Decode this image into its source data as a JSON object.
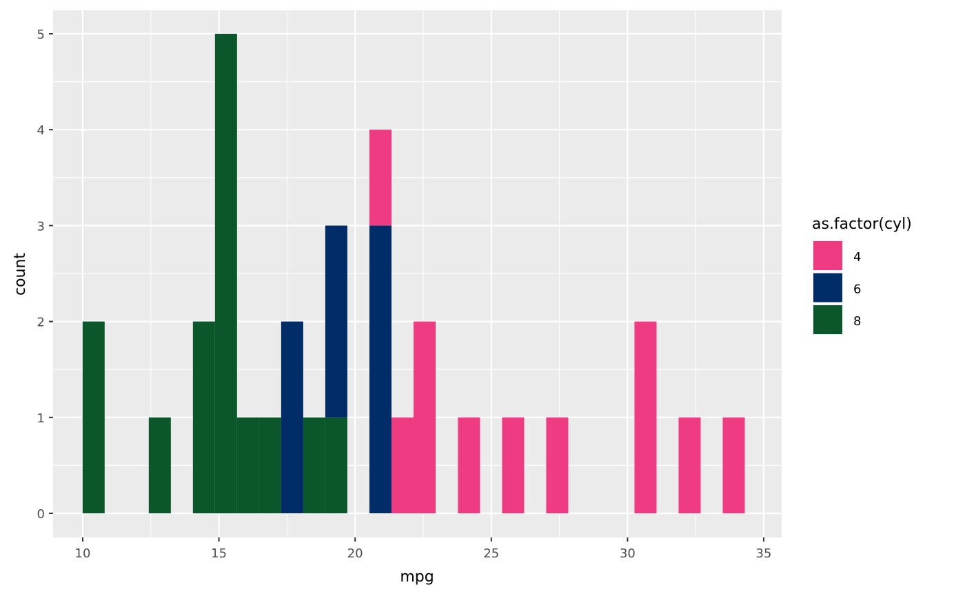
{
  "chart_data": {
    "type": "bar",
    "subtype": "stacked histogram",
    "title": "",
    "xlabel": "mpg",
    "ylabel": "count",
    "xlim": [
      9,
      35.7
    ],
    "ylim": [
      -0.25,
      5.25
    ],
    "xticks": [
      10,
      15,
      20,
      25,
      30,
      35
    ],
    "yticks": [
      0,
      1,
      2,
      3,
      4,
      5
    ],
    "binwidth": 0.8103,
    "grid": true,
    "legend": {
      "title": "as.factor(cyl)",
      "placement": "right",
      "entries": [
        "4",
        "6",
        "8"
      ]
    },
    "colors": {
      "4": "#EE3B82",
      "6": "#002D67",
      "8": "#0B572B"
    },
    "bins": [
      {
        "center": 10.4,
        "counts": {
          "4": 0,
          "6": 0,
          "8": 2
        }
      },
      {
        "center": 12.83,
        "counts": {
          "4": 0,
          "6": 0,
          "8": 1
        }
      },
      {
        "center": 14.45,
        "counts": {
          "4": 0,
          "6": 0,
          "8": 2
        }
      },
      {
        "center": 15.26,
        "counts": {
          "4": 0,
          "6": 0,
          "8": 5
        }
      },
      {
        "center": 16.07,
        "counts": {
          "4": 0,
          "6": 0,
          "8": 1
        }
      },
      {
        "center": 16.88,
        "counts": {
          "4": 0,
          "6": 0,
          "8": 1
        }
      },
      {
        "center": 17.69,
        "counts": {
          "4": 0,
          "6": 2,
          "8": 0
        }
      },
      {
        "center": 18.5,
        "counts": {
          "4": 0,
          "6": 0,
          "8": 1
        }
      },
      {
        "center": 19.31,
        "counts": {
          "4": 0,
          "6": 2,
          "8": 1
        }
      },
      {
        "center": 20.93,
        "counts": {
          "4": 1,
          "6": 3,
          "8": 0
        }
      },
      {
        "center": 21.74,
        "counts": {
          "4": 1,
          "6": 0,
          "8": 0
        }
      },
      {
        "center": 22.55,
        "counts": {
          "4": 2,
          "6": 0,
          "8": 0
        }
      },
      {
        "center": 24.18,
        "counts": {
          "4": 1,
          "6": 0,
          "8": 0
        }
      },
      {
        "center": 25.8,
        "counts": {
          "4": 1,
          "6": 0,
          "8": 0
        }
      },
      {
        "center": 27.42,
        "counts": {
          "4": 1,
          "6": 0,
          "8": 0
        }
      },
      {
        "center": 30.66,
        "counts": {
          "4": 2,
          "6": 0,
          "8": 0
        }
      },
      {
        "center": 32.28,
        "counts": {
          "4": 1,
          "6": 0,
          "8": 0
        }
      },
      {
        "center": 33.9,
        "counts": {
          "4": 1,
          "6": 0,
          "8": 0
        }
      }
    ]
  }
}
